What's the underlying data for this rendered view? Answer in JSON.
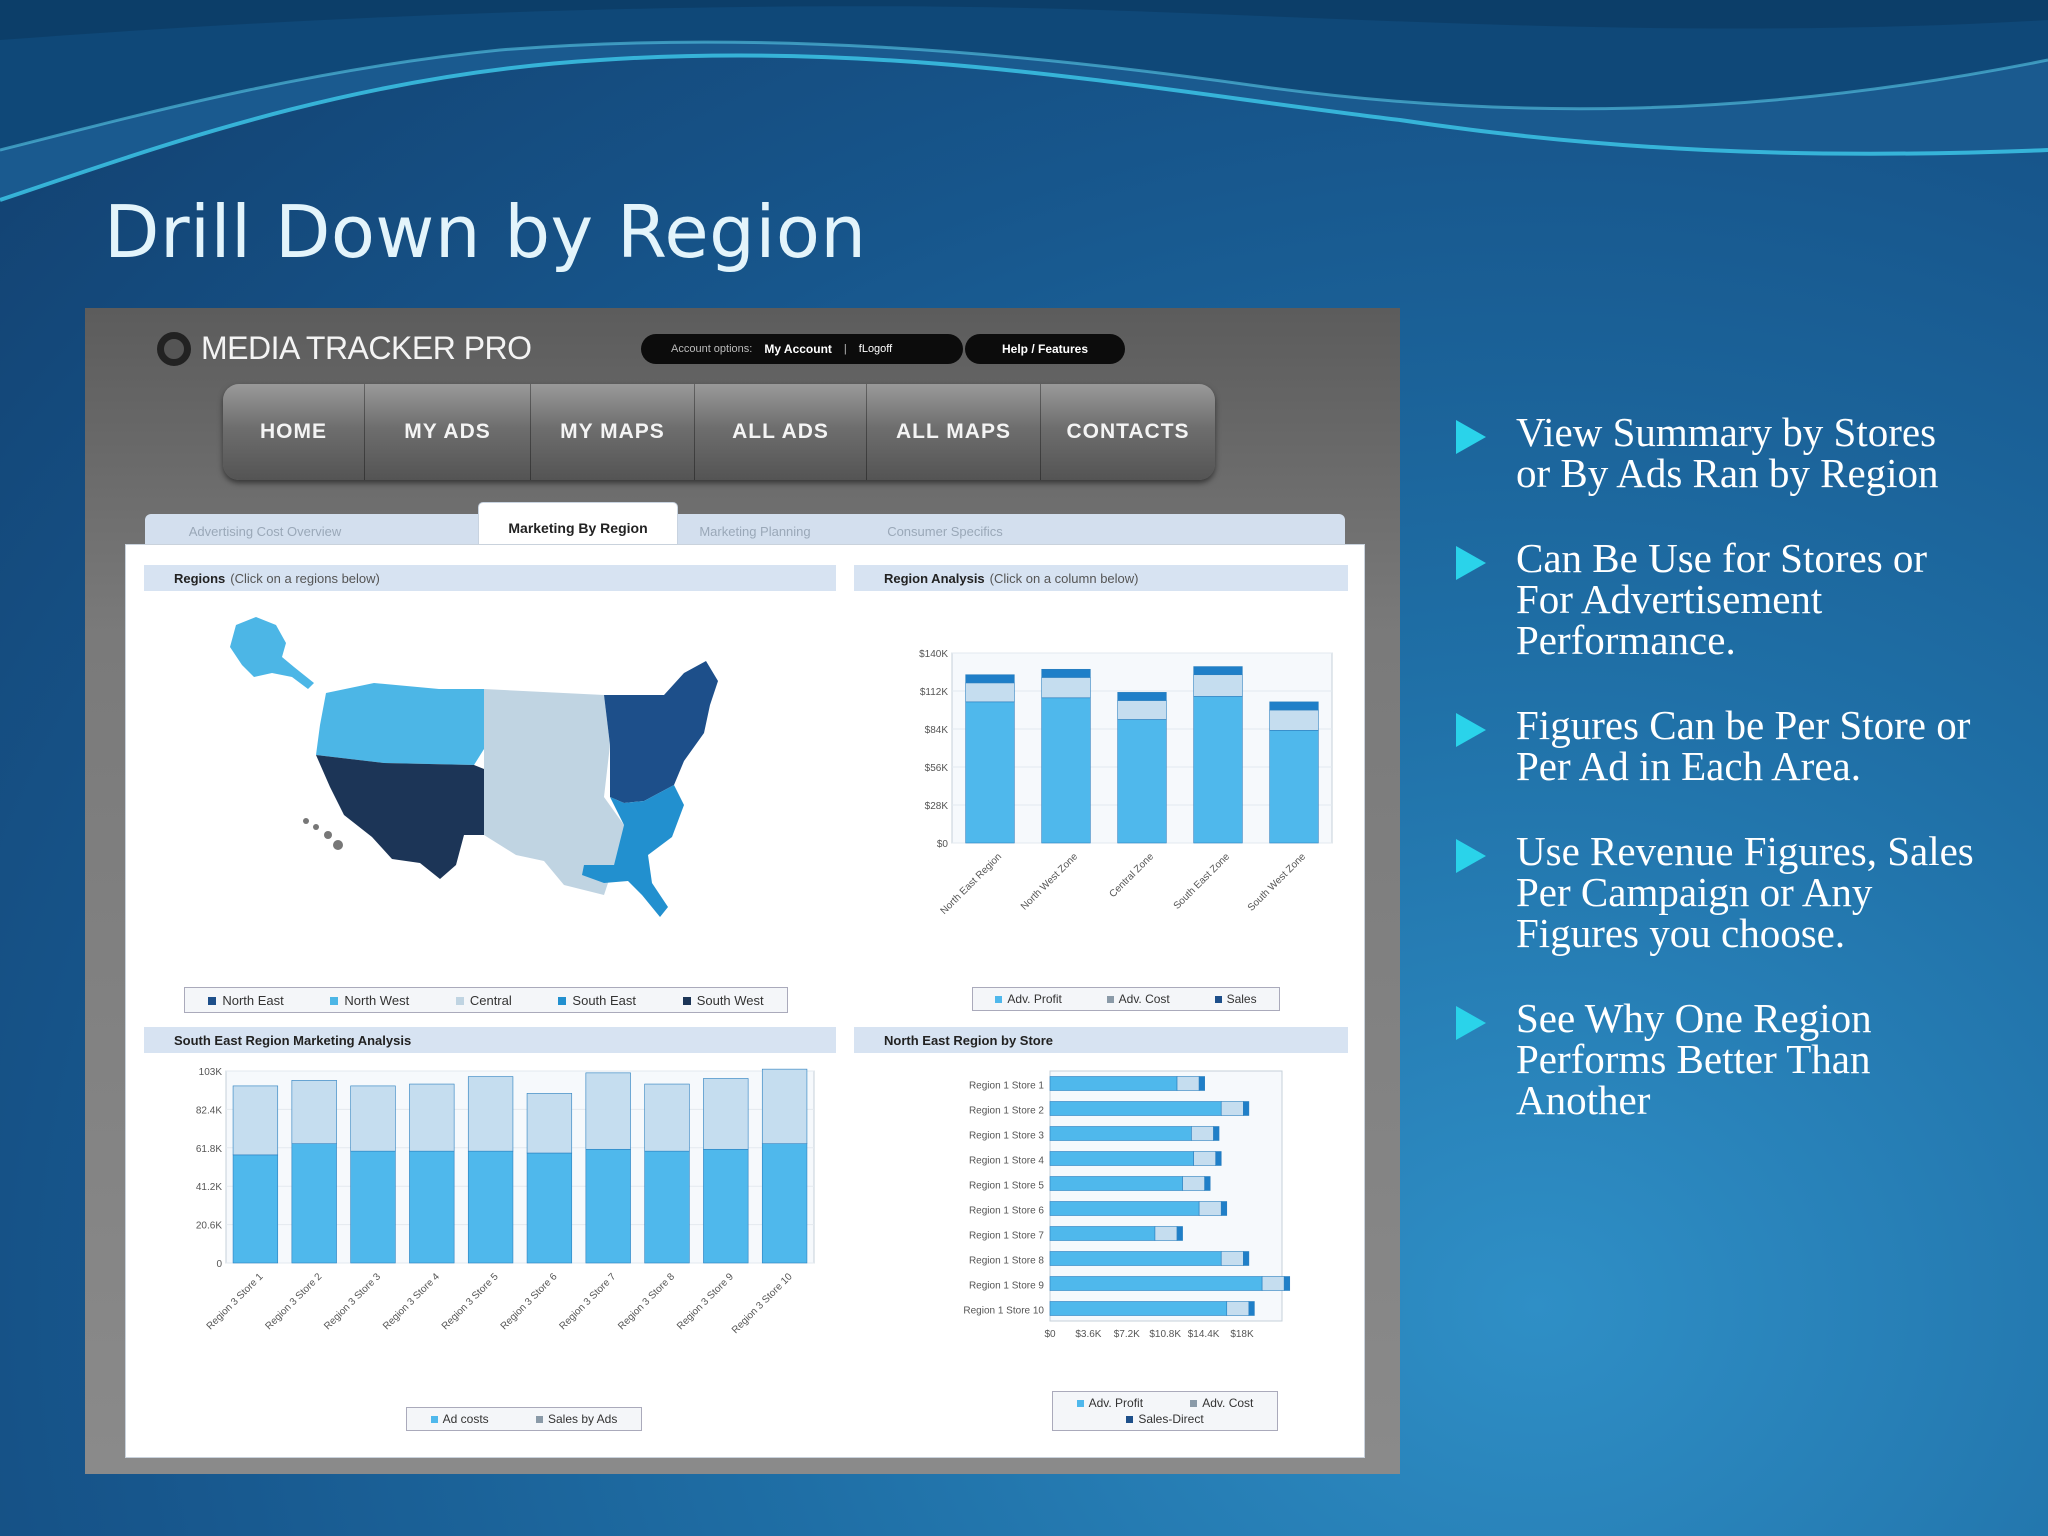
{
  "slide": {
    "title": "Drill Down by Region",
    "bullets": [
      "View Summary by Stores\nor By Ads Ran by Region",
      " Can Be Use for Stores or\nFor Advertisement\nPerformance.",
      "Figures Can be Per Store or\nPer Ad in Each Area.",
      " Use Revenue Figures, Sales\nPer Campaign or Any\nFigures you choose.",
      "See Why One Region\nPerforms Better Than\nAnother"
    ],
    "colors": {
      "bullet": "#2ad3ea",
      "title": "#e3f4fb",
      "background": "#1f6fa6"
    }
  },
  "app": {
    "name": "MEDIA TRACKER PRO",
    "account_label": "Account options:",
    "my_account": "My Account",
    "logoff": "fLogoff",
    "separator": "|",
    "help": "Help / Features",
    "nav": [
      "HOME",
      "MY ADS",
      "MY MAPS",
      "ALL ADS",
      "ALL MAPS",
      "CONTACTS"
    ],
    "tabs": [
      "Advertising Cost Overview",
      "Marketing By Region",
      "Marketing Planning",
      "Consumer Specifics"
    ],
    "active_tab": "Marketing By Region"
  },
  "panels": {
    "regions": {
      "title": "Regions",
      "hint": "(Click on a regions below)",
      "legend": [
        "North East",
        "North West",
        "Central",
        "South East",
        "South West"
      ],
      "colors": {
        "North East": "#1d4f8a",
        "North West": "#4cb6e6",
        "Central": "#c0d4e2",
        "South East": "#2290cf",
        "South West": "#1c3557"
      }
    },
    "region_analysis": {
      "title": "Region Analysis",
      "hint": "(Click on a column below)",
      "legend": [
        "Adv. Profit",
        "Adv. Cost",
        "Sales"
      ]
    },
    "south_east": {
      "title": "South East Region Marketing Analysis",
      "legend": [
        "Ad costs",
        "Sales by Ads"
      ]
    },
    "north_east": {
      "title": "North East Region by Store",
      "legend": [
        "Adv. Profit",
        "Adv. Cost",
        "Sales-Direct"
      ]
    }
  },
  "chart_data": [
    {
      "type": "bar",
      "categories": [
        "North East Region",
        "North West Zone",
        "Central Zone",
        "South East Zone",
        "South West Zone"
      ],
      "series": [
        {
          "name": "Adv. Profit",
          "values": [
            104,
            107,
            91,
            108,
            83
          ]
        },
        {
          "name": "Adv. Cost",
          "values": [
            14,
            15,
            14,
            16,
            15
          ]
        },
        {
          "name": "Sales",
          "values": [
            6,
            6,
            6,
            6,
            6
          ]
        }
      ],
      "yticks": [
        "$140K",
        "$112K",
        "$84K",
        "$56K",
        "$28K",
        "$0"
      ],
      "ylim": [
        0,
        140
      ],
      "stacked": true
    },
    {
      "type": "bar",
      "categories": [
        "Region 3 Store 1",
        "Region 3 Store 2",
        "Region 3 Store 3",
        "Region 3 Store 4",
        "Region 3 Store 5",
        "Region 3 Store 6",
        "Region 3 Store 7",
        "Region 3 Store 8",
        "Region 3 Store 9",
        "Region 3 Store 10"
      ],
      "series": [
        {
          "name": "Ad costs",
          "values": [
            58,
            64,
            60,
            60,
            60,
            59,
            61,
            60,
            61,
            64
          ]
        },
        {
          "name": "Sales by Ads",
          "values": [
            37,
            34,
            35,
            36,
            40,
            32,
            41,
            36,
            38,
            40
          ]
        }
      ],
      "yticks": [
        "103K",
        "82.4K",
        "61.8K",
        "41.2K",
        "20.6K",
        "0"
      ],
      "ylim": [
        0,
        103
      ],
      "stacked": true
    },
    {
      "type": "bar",
      "orientation": "horizontal",
      "categories": [
        "Region 1 Store 1",
        "Region 1 Store 2",
        "Region 1 Store 3",
        "Region 1 Store 4",
        "Region 1 Store 5",
        "Region 1 Store 6",
        "Region 1 Store 7",
        "Region 1 Store 8",
        "Region 1 Store 9",
        "Region 1 Store 10"
      ],
      "series": [
        {
          "name": "Adv. Profit",
          "values": [
            11.5,
            15.5,
            12.8,
            13.0,
            12.0,
            13.5,
            9.5,
            15.5,
            19.2,
            16.0
          ]
        },
        {
          "name": "Adv. Cost",
          "values": [
            2.0,
            2.0,
            2.0,
            2.0,
            2.0,
            2.0,
            2.0,
            2.0,
            2.0,
            2.0
          ]
        },
        {
          "name": "Sales-Direct",
          "values": [
            0.5,
            0.5,
            0.5,
            0.5,
            0.5,
            0.5,
            0.5,
            0.5,
            0.5,
            0.5
          ]
        }
      ],
      "xticks": [
        "$0",
        "$3.6K",
        "$7.2K",
        "$10.8K",
        "$14.4K",
        "$18K"
      ],
      "xlim": [
        0,
        21
      ],
      "stacked": true
    }
  ]
}
